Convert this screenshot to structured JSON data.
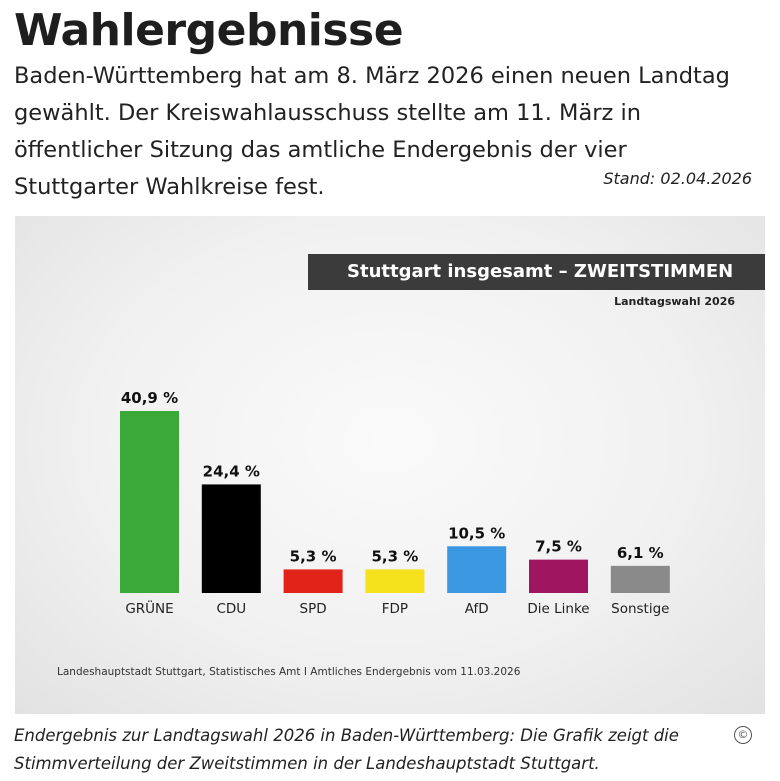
{
  "header": {
    "title": "Wahlergebnisse",
    "intro": "Baden-Württemberg hat am 8. März 2026 einen neuen Landtag gewählt. Der Kreiswahlausschuss stellte am 11. März in öffentlicher Sitzung das amtliche Endergebnis der vier Stuttgarter Wahlkreise fest.",
    "stand": "Stand: 02.04.2026"
  },
  "chart_data": {
    "type": "bar",
    "title": "Stuttgart insgesamt – ZWEITSTIMMEN",
    "subtitle": "Landtagswahl 2026",
    "categories": [
      "GRÜNE",
      "CDU",
      "SPD",
      "FDP",
      "AfD",
      "Die Linke",
      "Sonstige"
    ],
    "values": [
      40.9,
      24.4,
      5.3,
      5.3,
      10.5,
      7.5,
      6.1
    ],
    "value_labels": [
      "40,9 %",
      "24,4 %",
      "5,3 %",
      "5,3 %",
      "10,5 %",
      "7,5 %",
      "6,1 %"
    ],
    "colors": [
      "#3aa93a",
      "#000000",
      "#e2231a",
      "#f5e21c",
      "#3b97e0",
      "#a0155f",
      "#8a8a8a"
    ],
    "ylim": [
      0,
      40.9
    ],
    "grid": false,
    "legend": "none",
    "source": "Landeshauptstadt Stuttgart, Statistisches Amt I Amtliches Endergebnis vom 11.03.2026"
  },
  "caption": {
    "text": "Endergebnis zur Landtagswahl 2026 in Baden-Württemberg: Die Grafik zeigt die Stimmverteilung der Zweitstimmen in der Landeshauptstadt Stuttgart.",
    "copyright": "©"
  }
}
